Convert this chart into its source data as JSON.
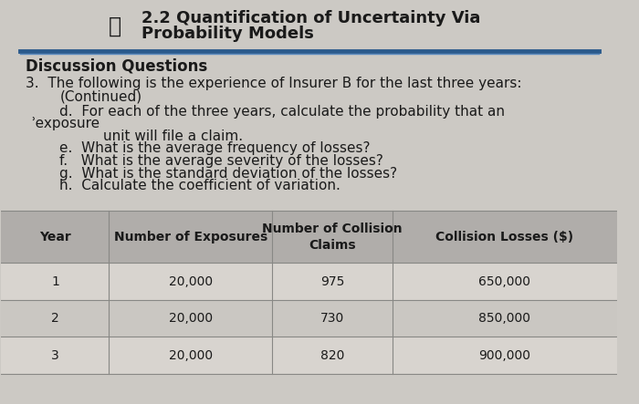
{
  "title_line1": "2.2 Quantification of Uncertainty Via",
  "title_line2": "Probability Models",
  "section_header": "Discussion Questions",
  "table_headers_col0": "Year",
  "table_headers_col1": "Number of Exposures",
  "table_headers_col2a": "Number of Collision",
  "table_headers_col2b": "Claims",
  "table_headers_col3": "Collision Losses ($)",
  "table_rows": [
    [
      "1",
      "20,000",
      "975",
      "650,000"
    ],
    [
      "2",
      "20,000",
      "730",
      "850,000"
    ],
    [
      "3",
      "20,000",
      "820",
      "900,000"
    ]
  ],
  "bg_color": "#ccc9c4",
  "header_row_color": "#b0adaa",
  "row_colors": [
    "#d8d4cf",
    "#cac7c2"
  ],
  "separator_color_dark": "#2a5a8c",
  "separator_color_light": "#5a8abf",
  "text_color": "#1a1a1a",
  "title_fontsize": 13,
  "body_fontsize": 11,
  "table_fontsize": 10
}
